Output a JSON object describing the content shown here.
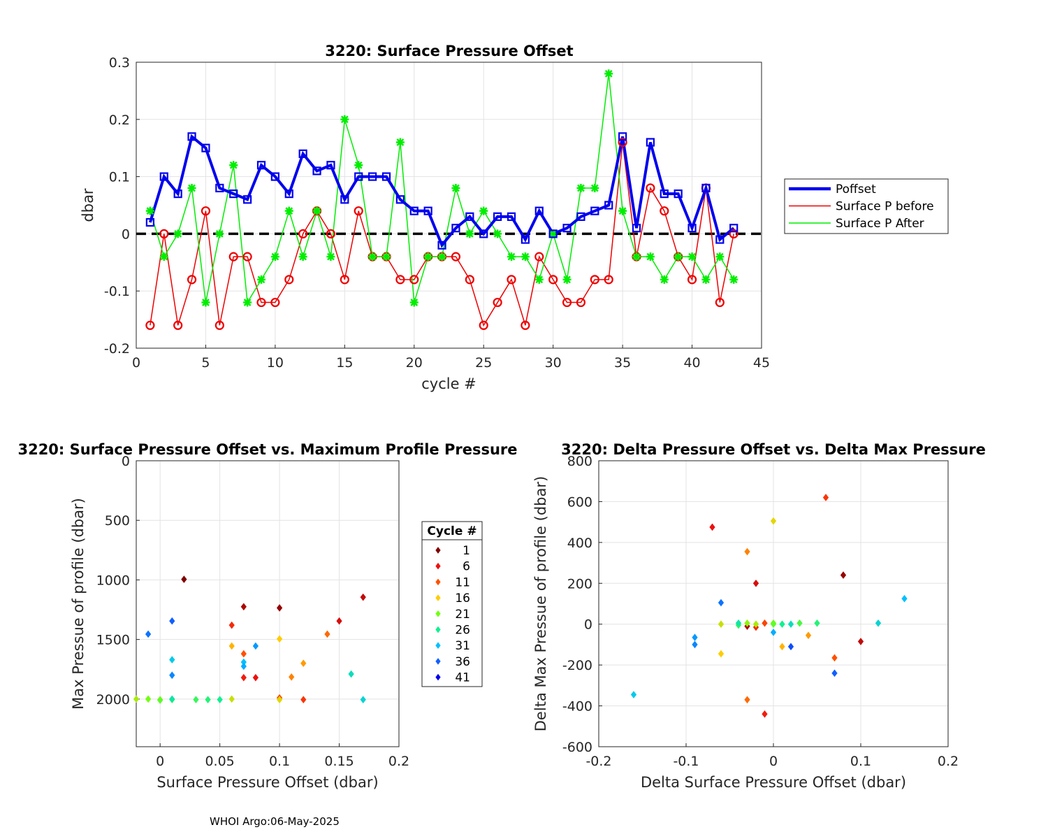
{
  "footer": "WHOI Argo:06-May-2025",
  "chart_data": [
    {
      "type": "line",
      "title": "3220: Surface Pressure Offset",
      "xlabel": "cycle #",
      "ylabel": "dbar",
      "xlim": [
        0,
        45
      ],
      "ylim": [
        -0.2,
        0.3
      ],
      "xticks": [
        0,
        5,
        10,
        15,
        20,
        25,
        30,
        35,
        40,
        45
      ],
      "yticks": [
        -0.2,
        -0.1,
        0,
        0.1,
        0.2,
        0.3
      ],
      "xtick_labels": [
        "0",
        "5",
        "10",
        "15",
        "20",
        "25",
        "30",
        "35",
        "40",
        "45"
      ],
      "ytick_labels": [
        "-0.2",
        "-0.1",
        "0",
        "0.1",
        "0.2",
        "0.3"
      ],
      "grid": true,
      "legend_position": "right",
      "x": [
        1,
        2,
        3,
        4,
        5,
        6,
        7,
        8,
        9,
        10,
        11,
        12,
        13,
        14,
        15,
        16,
        17,
        18,
        19,
        20,
        21,
        22,
        23,
        24,
        25,
        26,
        27,
        28,
        29,
        30,
        31,
        32,
        33,
        34,
        35,
        36,
        37,
        38,
        39,
        40,
        41,
        42,
        43
      ],
      "series": [
        {
          "name": "Poffset",
          "color": "#0000ee",
          "marker": "square",
          "values": [
            0.02,
            0.1,
            0.07,
            0.17,
            0.15,
            0.08,
            0.07,
            0.06,
            0.12,
            0.1,
            0.07,
            0.14,
            0.11,
            0.12,
            0.06,
            0.1,
            0.1,
            0.1,
            0.06,
            0.04,
            0.04,
            -0.02,
            0.01,
            0.03,
            0,
            0.03,
            0.03,
            -0.01,
            0.04,
            0,
            0.01,
            0.03,
            0.04,
            0.05,
            0.17,
            0.01,
            0.16,
            0.07,
            0.07,
            0.01,
            0.08,
            -0.01,
            0.01
          ]
        },
        {
          "name": "Surface P before",
          "color": "#ee0000",
          "marker": "circle",
          "values": [
            -0.16,
            0,
            -0.16,
            -0.08,
            0.04,
            -0.16,
            -0.04,
            -0.04,
            -0.12,
            -0.12,
            -0.08,
            0,
            0.04,
            0,
            -0.08,
            0.04,
            -0.04,
            -0.04,
            -0.08,
            -0.08,
            -0.04,
            -0.04,
            -0.04,
            -0.08,
            -0.16,
            -0.12,
            -0.08,
            -0.16,
            -0.04,
            -0.08,
            -0.12,
            -0.12,
            -0.08,
            -0.08,
            0.16,
            -0.04,
            0.08,
            0.04,
            -0.04,
            -0.08,
            0.08,
            -0.12,
            0
          ]
        },
        {
          "name": "Surface P After",
          "color": "#00ee00",
          "marker": "star",
          "values": [
            0.04,
            -0.04,
            0,
            0.08,
            -0.12,
            0,
            0.12,
            -0.12,
            -0.08,
            -0.04,
            0.04,
            -0.04,
            0.04,
            -0.04,
            0.2,
            0.12,
            -0.04,
            -0.04,
            0.16,
            -0.12,
            -0.04,
            -0.04,
            0.08,
            0,
            0.04,
            0,
            -0.04,
            -0.04,
            -0.08,
            0,
            -0.08,
            0.08,
            0.08,
            0.28,
            0.04,
            -0.04,
            -0.04,
            -0.08,
            -0.04,
            -0.04,
            -0.08,
            -0.04,
            -0.08
          ]
        }
      ],
      "reference_line": {
        "y": 0,
        "style": "dashed",
        "color": "#000000"
      }
    },
    {
      "type": "scatter",
      "title": "3220: Surface Pressure Offset vs. Maximum Profile Pressure",
      "xlabel": "Surface Pressure Offset (dbar)",
      "ylabel": "Max Pressue of profile (dbar)",
      "xlim": [
        -0.02,
        0.2
      ],
      "ylim": [
        0,
        2400
      ],
      "y_reversed": true,
      "xticks": [
        0,
        0.05,
        0.1,
        0.15,
        0.2
      ],
      "yticks": [
        0,
        500,
        1000,
        1500,
        2000
      ],
      "xtick_labels": [
        "0",
        "0.05",
        "0.1",
        "0.15",
        "0.2"
      ],
      "ytick_labels": [
        "0",
        "500",
        "1000",
        "1500",
        "2000"
      ],
      "grid": true,
      "colorbar_legend": {
        "title": "Cycle #",
        "entries": [
          "1",
          "6",
          "11",
          "16",
          "21",
          "26",
          "31",
          "36",
          "41"
        ],
        "colors": [
          "#800000",
          "#ee1010",
          "#ff5000",
          "#ffcc00",
          "#70ff10",
          "#10f090",
          "#00c0ff",
          "#1060ff",
          "#0000ee"
        ]
      },
      "points": [
        {
          "cycle": 1,
          "x": 0.02,
          "y": 995
        },
        {
          "cycle": 2,
          "x": 0.1,
          "y": 1235
        },
        {
          "cycle": 3,
          "x": 0.07,
          "y": 1225
        },
        {
          "cycle": 4,
          "x": 0.17,
          "y": 1145
        },
        {
          "cycle": 5,
          "x": 0.15,
          "y": 1345
        },
        {
          "cycle": 6,
          "x": 0.08,
          "y": 1820
        },
        {
          "cycle": 7,
          "x": 0.07,
          "y": 1820
        },
        {
          "cycle": 8,
          "x": 0.06,
          "y": 1380
        },
        {
          "cycle": 9,
          "x": 0.12,
          "y": 2005
        },
        {
          "cycle": 10,
          "x": 0.1,
          "y": 1990
        },
        {
          "cycle": 11,
          "x": 0.07,
          "y": 1620
        },
        {
          "cycle": 12,
          "x": 0.14,
          "y": 1455
        },
        {
          "cycle": 13,
          "x": 0.11,
          "y": 1815
        },
        {
          "cycle": 14,
          "x": 0.12,
          "y": 1700
        },
        {
          "cycle": 15,
          "x": 0.06,
          "y": 1555
        },
        {
          "cycle": 16,
          "x": 0.1,
          "y": 1495
        },
        {
          "cycle": 17,
          "x": 0.1,
          "y": 2005
        },
        {
          "cycle": 18,
          "x": 0.06,
          "y": 2000
        },
        {
          "cycle": 19,
          "x": -0.02,
          "y": 2000
        },
        {
          "cycle": 20,
          "x": 0.0,
          "y": 2005
        },
        {
          "cycle": 21,
          "x": -0.01,
          "y": 2000
        },
        {
          "cycle": 22,
          "x": 0.0,
          "y": 2010
        },
        {
          "cycle": 23,
          "x": 0.01,
          "y": 2005
        },
        {
          "cycle": 24,
          "x": 0.03,
          "y": 2005
        },
        {
          "cycle": 25,
          "x": 0.04,
          "y": 2005
        },
        {
          "cycle": 26,
          "x": 0.05,
          "y": 2005
        },
        {
          "cycle": 27,
          "x": 0.01,
          "y": 2000
        },
        {
          "cycle": 28,
          "x": 0.16,
          "y": 1790
        },
        {
          "cycle": 29,
          "x": 0.17,
          "y": 2005
        },
        {
          "cycle": 30,
          "x": 0.01,
          "y": 1670
        },
        {
          "cycle": 31,
          "x": 0.07,
          "y": 1690
        },
        {
          "cycle": 32,
          "x": 0.07,
          "y": 1725
        },
        {
          "cycle": 33,
          "x": 0.08,
          "y": 1555
        },
        {
          "cycle": 34,
          "x": 0.01,
          "y": 1800
        },
        {
          "cycle": 35,
          "x": -0.01,
          "y": 1455
        },
        {
          "cycle": 36,
          "x": 0.01,
          "y": 1345
        }
      ]
    },
    {
      "type": "scatter",
      "title": "3220: Delta Pressure Offset vs. Delta Max Pressure",
      "xlabel": "Delta Surface Pressure Offset (dbar)",
      "ylabel": "Delta Max Pressue of profile (dbar)",
      "xlim": [
        -0.2,
        0.2
      ],
      "ylim": [
        -600,
        800
      ],
      "xticks": [
        -0.2,
        -0.1,
        0,
        0.1,
        0.2
      ],
      "yticks": [
        -600,
        -400,
        -200,
        0,
        200,
        400,
        600,
        800
      ],
      "xtick_labels": [
        "-0.2",
        "-0.1",
        "0",
        "0.1",
        "0.2"
      ],
      "ytick_labels": [
        "-600",
        "-400",
        "-200",
        "0",
        "200",
        "400",
        "600",
        "800"
      ],
      "grid": true,
      "points": [
        {
          "cycle": 2,
          "x": 0.08,
          "y": 240
        },
        {
          "cycle": 3,
          "x": -0.03,
          "y": -10
        },
        {
          "cycle": 4,
          "x": 0.1,
          "y": -85
        },
        {
          "cycle": 5,
          "x": -0.02,
          "y": 200
        },
        {
          "cycle": 6,
          "x": -0.07,
          "y": 475
        },
        {
          "cycle": 7,
          "x": -0.01,
          "y": -440
        },
        {
          "cycle": 8,
          "x": -0.02,
          "y": -15
        },
        {
          "cycle": 9,
          "x": 0.06,
          "y": 620
        },
        {
          "cycle": 10,
          "x": -0.01,
          "y": 5
        },
        {
          "cycle": 11,
          "x": 0.07,
          "y": -165
        },
        {
          "cycle": 12,
          "x": -0.03,
          "y": -370
        },
        {
          "cycle": 13,
          "x": -0.03,
          "y": 355
        },
        {
          "cycle": 14,
          "x": 0.04,
          "y": -55
        },
        {
          "cycle": 15,
          "x": 0.01,
          "y": -110
        },
        {
          "cycle": 16,
          "x": -0.06,
          "y": -145
        },
        {
          "cycle": 17,
          "x": 0.0,
          "y": 505
        },
        {
          "cycle": 18,
          "x": -0.06,
          "y": 0
        },
        {
          "cycle": 19,
          "x": -0.02,
          "y": 0
        },
        {
          "cycle": 20,
          "x": -0.03,
          "y": 5
        },
        {
          "cycle": 21,
          "x": 0.0,
          "y": 5
        },
        {
          "cycle": 22,
          "x": 0.0,
          "y": 0
        },
        {
          "cycle": 23,
          "x": 0.03,
          "y": 5
        },
        {
          "cycle": 24,
          "x": -0.04,
          "y": -5
        },
        {
          "cycle": 25,
          "x": 0.05,
          "y": 5
        },
        {
          "cycle": 26,
          "x": 0.01,
          "y": 0
        },
        {
          "cycle": 27,
          "x": -0.04,
          "y": 5
        },
        {
          "cycle": 28,
          "x": 0.02,
          "y": 0
        },
        {
          "cycle": 29,
          "x": 0.12,
          "y": 5
        },
        {
          "cycle": 30,
          "x": -0.16,
          "y": -345
        },
        {
          "cycle": 31,
          "x": 0.15,
          "y": 125
        },
        {
          "cycle": 32,
          "x": 0.0,
          "y": -40
        },
        {
          "cycle": 33,
          "x": -0.09,
          "y": -65
        },
        {
          "cycle": 34,
          "x": -0.09,
          "y": -100
        },
        {
          "cycle": 35,
          "x": -0.06,
          "y": 105
        },
        {
          "cycle": 36,
          "x": 0.07,
          "y": -240
        },
        {
          "cycle": 37,
          "x": 0.02,
          "y": -110
        }
      ]
    }
  ]
}
